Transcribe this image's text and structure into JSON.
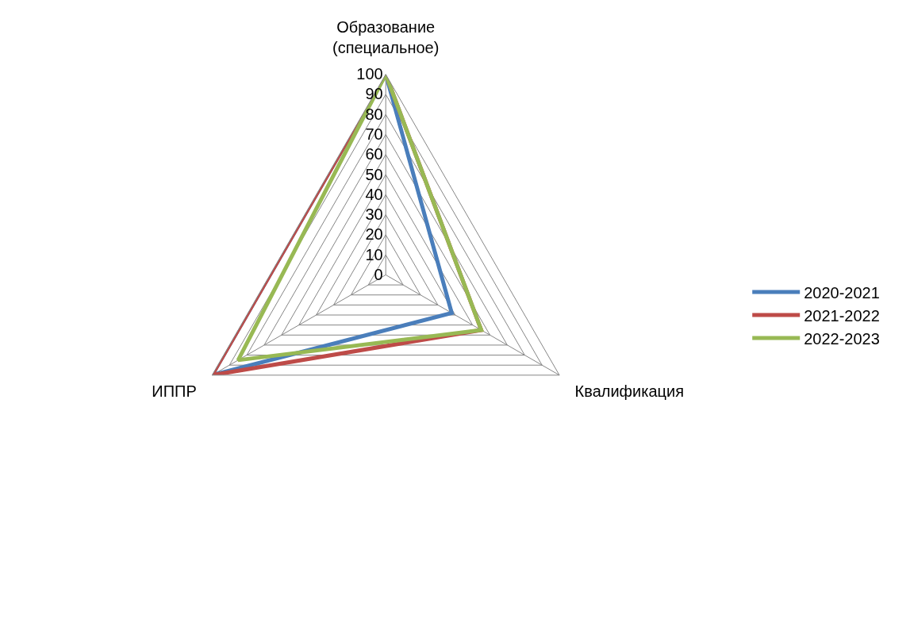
{
  "chart_data": {
    "type": "radar",
    "categories": [
      "Образование (специальное)",
      "Квалификация",
      "ИППР"
    ],
    "series": [
      {
        "name": "2020-2021",
        "color": "#4a7ebb",
        "values": [
          100,
          38,
          100
        ]
      },
      {
        "name": "2021-2022",
        "color": "#be4b48",
        "values": [
          100,
          55,
          100
        ]
      },
      {
        "name": "2022-2023",
        "color": "#98b954",
        "values": [
          100,
          55,
          85
        ]
      }
    ],
    "ylim": [
      0,
      100
    ],
    "yticks": [
      0,
      10,
      20,
      30,
      40,
      50,
      60,
      70,
      80,
      90,
      100
    ],
    "grid": true,
    "legend": "right",
    "marker": "none",
    "line_style": "solid"
  }
}
